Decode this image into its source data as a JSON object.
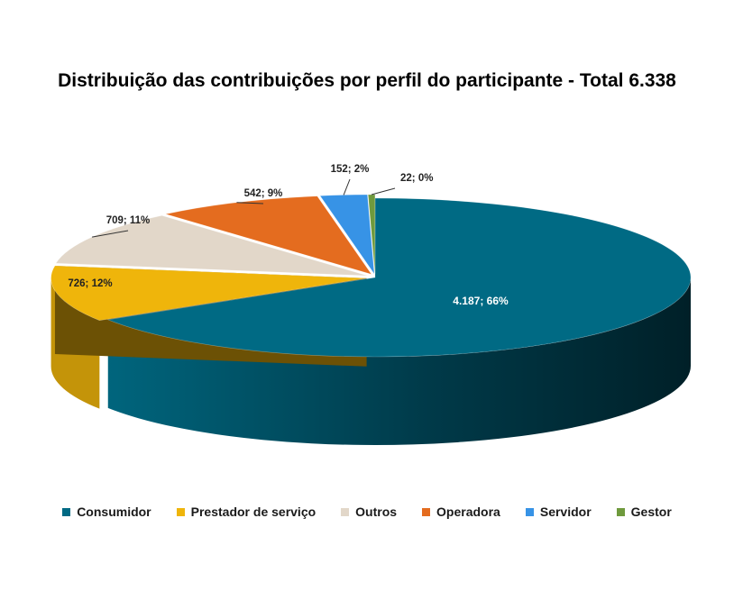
{
  "chart_data": {
    "type": "pie",
    "title": "Distribuição das contribuições por perfil do participante - Total 6.338",
    "legend_position": "bottom",
    "slices": [
      {
        "name": "Consumidor",
        "value": 4187,
        "percent": 66,
        "label": "4.187; 66%",
        "color": "#006a84"
      },
      {
        "name": "Prestador de serviço",
        "value": 726,
        "percent": 12,
        "label": "726; 12%",
        "color": "#efb50b"
      },
      {
        "name": "Outros",
        "value": 709,
        "percent": 11,
        "label": "709; 11%",
        "color": "#e2d7c9"
      },
      {
        "name": "Operadora",
        "value": 542,
        "percent": 9,
        "label": "542; 9%",
        "color": "#e46c1f"
      },
      {
        "name": "Servidor",
        "value": 152,
        "percent": 2,
        "label": "152; 2%",
        "color": "#3793e6"
      },
      {
        "name": "Gestor",
        "value": 22,
        "percent": 0,
        "label": "22; 0%",
        "color": "#6f9a3d"
      }
    ]
  }
}
